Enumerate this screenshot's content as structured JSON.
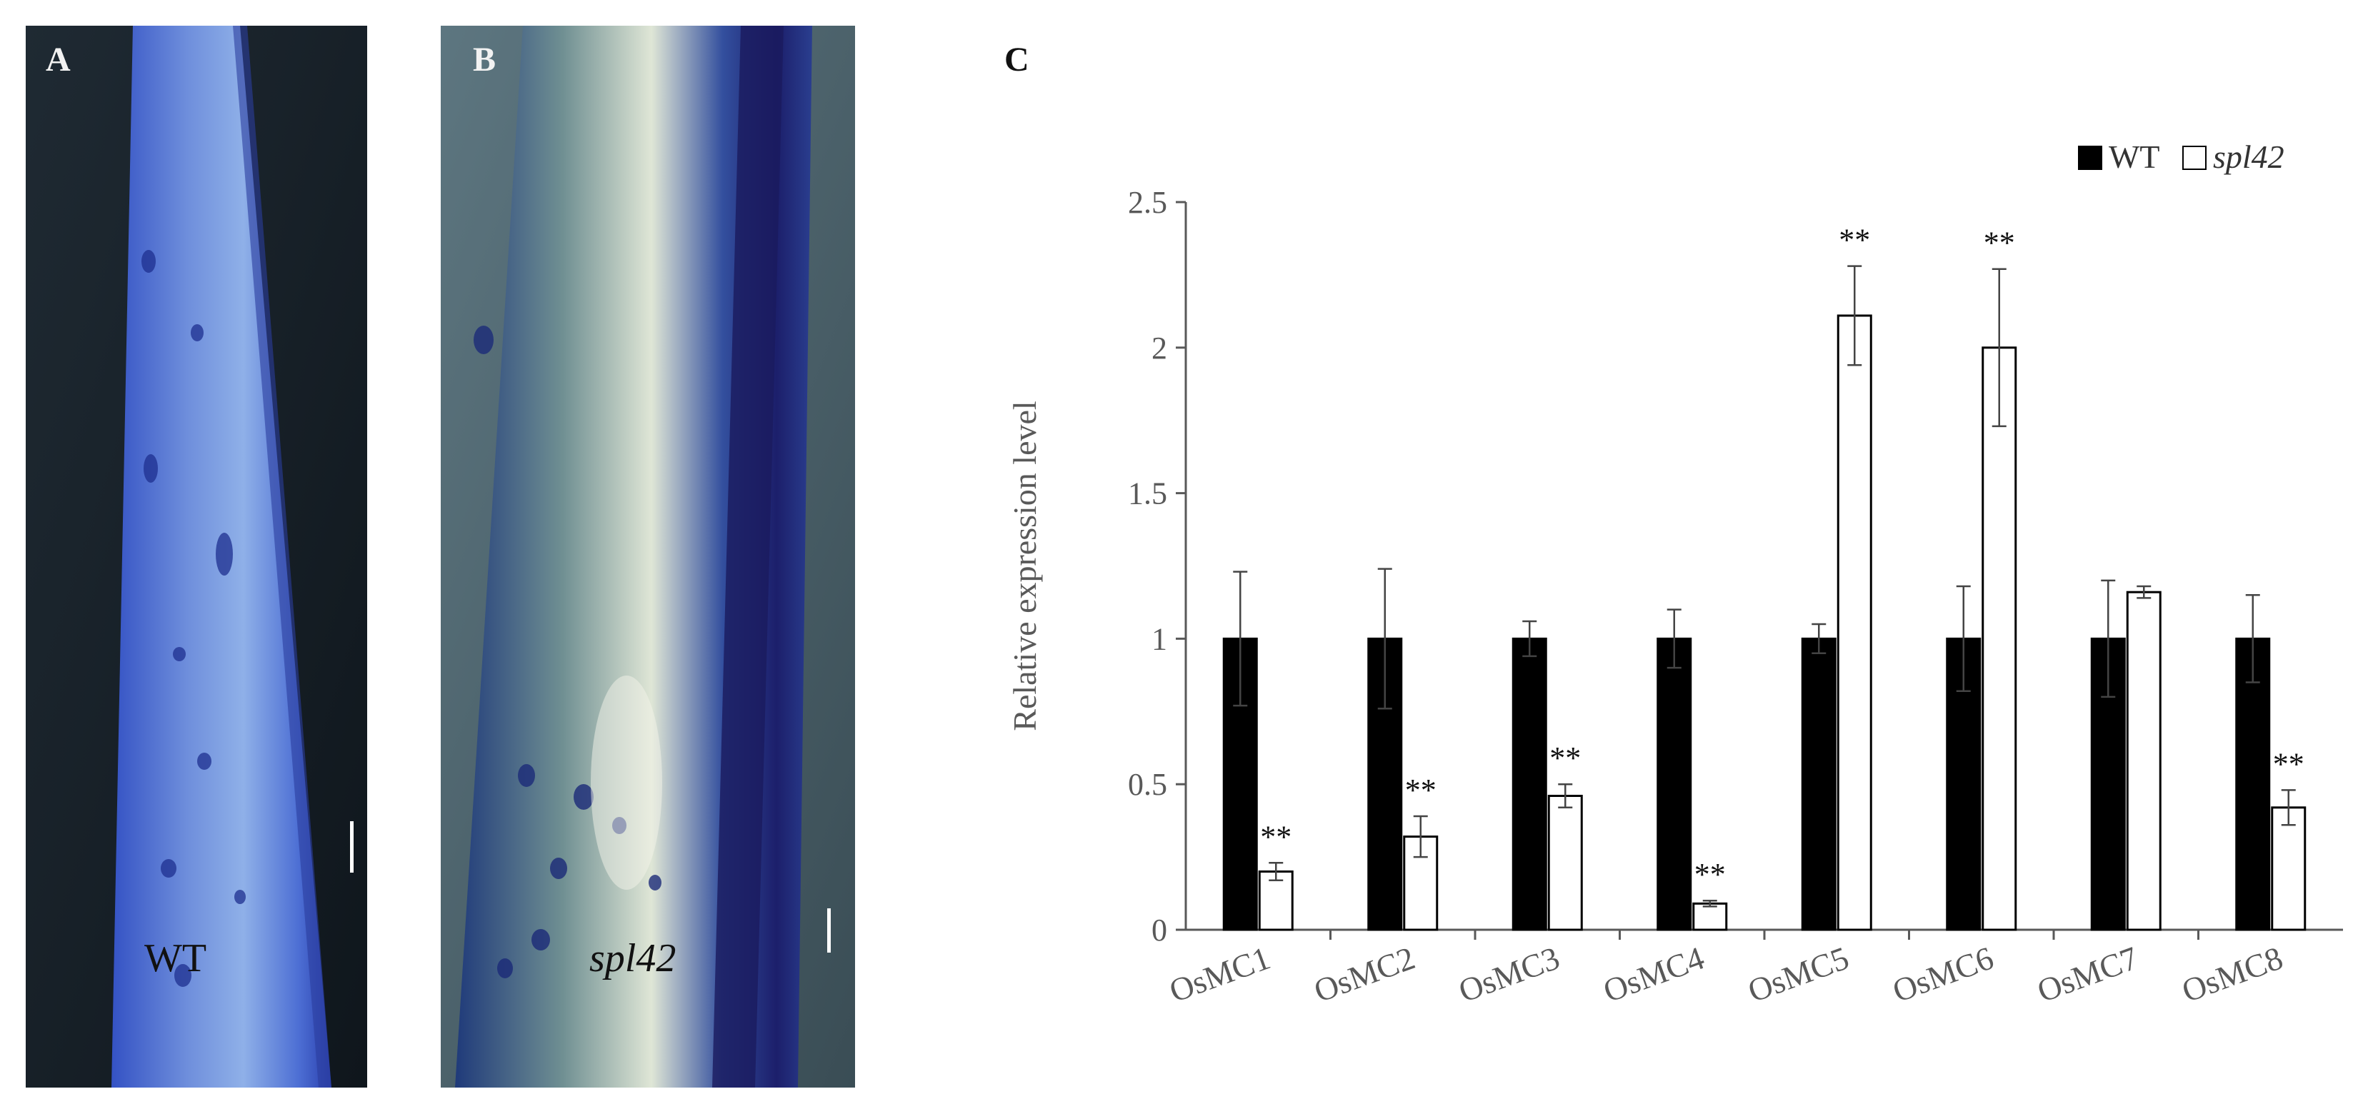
{
  "panels": {
    "a": {
      "letter": "A",
      "label": "WT"
    },
    "b": {
      "letter": "B",
      "label": "spl42"
    },
    "c": {
      "letter": "C"
    }
  },
  "colors": {
    "wt_bar": "#000000",
    "spl42_bar": "#ffffff",
    "bar_edge": "#000000",
    "axis": "#595959",
    "stain_blue": "#2f4fc8"
  },
  "chart_data": {
    "type": "bar",
    "title": "",
    "xlabel": "",
    "ylabel": "Relative expression level",
    "ylim": [
      0,
      2.5
    ],
    "yticks": [
      0,
      0.5,
      1,
      1.5,
      2,
      2.5
    ],
    "ytick_labels": [
      "0",
      "0.5",
      "1",
      "1.5",
      "2",
      "2.5"
    ],
    "grid": false,
    "legend_position": "top-right",
    "categories": [
      "OsMC1",
      "OsMC2",
      "OsMC3",
      "OsMC4",
      "OsMC5",
      "OsMC6",
      "OsMC7",
      "OsMC8"
    ],
    "series": [
      {
        "name": "WT",
        "values": [
          1,
          1,
          1,
          1,
          1,
          1,
          1,
          1
        ],
        "errors": [
          0.23,
          0.24,
          0.06,
          0.1,
          0.05,
          0.18,
          0.2,
          0.15
        ]
      },
      {
        "name": "spl42",
        "values": [
          0.2,
          0.32,
          0.46,
          0.09,
          2.11,
          2.0,
          1.16,
          0.42
        ],
        "errors": [
          0.03,
          0.07,
          0.04,
          0.01,
          0.17,
          0.27,
          0.02,
          0.06
        ]
      }
    ],
    "annotations": [
      "**",
      "**",
      "**",
      "**",
      "**",
      "**",
      "",
      "**"
    ]
  }
}
